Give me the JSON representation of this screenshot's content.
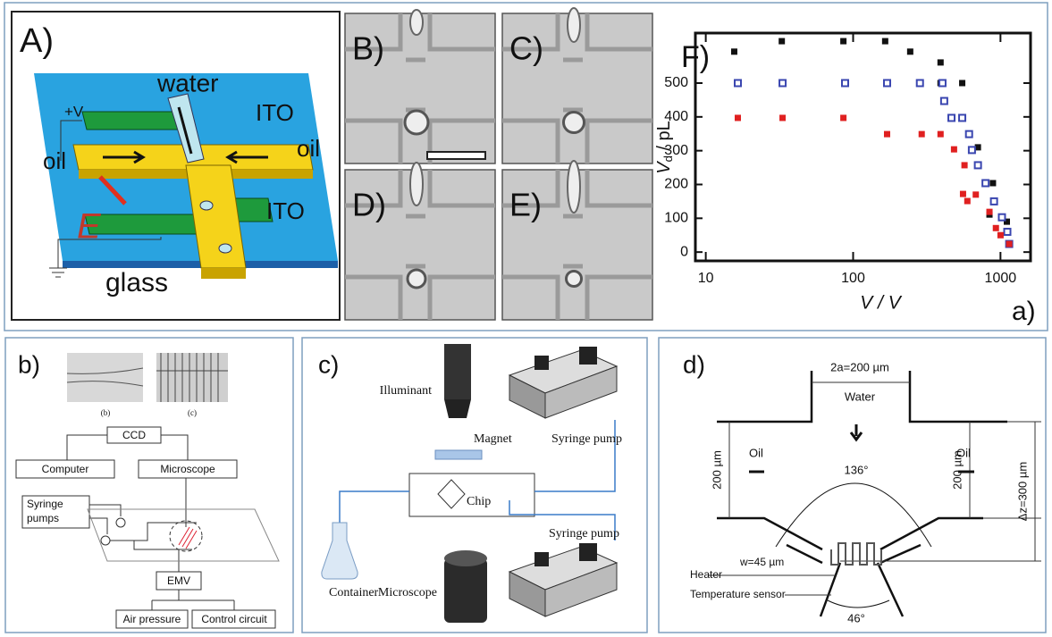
{
  "panel_labels": {
    "a": "a)",
    "b": "b)",
    "c": "c)",
    "d": "d)"
  },
  "panel_a": {
    "schematic": {
      "label": "A)",
      "water": "water",
      "ito_top": "ITO",
      "plus_v": "+V",
      "oil_left": "oil",
      "oil_right": "oil",
      "field": "E",
      "ito_bottom": "ITO",
      "glass": "glass"
    },
    "micrographs": [
      "B)",
      "C)",
      "D)",
      "E)"
    ]
  },
  "chart_data": {
    "type": "scatter",
    "title": "F)",
    "x_label": "V / V",
    "y_label": {
      "symbol": "V",
      "subscript": "d",
      "unit": " / pL"
    },
    "log_x": true,
    "xlim": [
      8.5,
      1600
    ],
    "xticks": [
      10,
      100,
      1000
    ],
    "ylim": [
      -26,
      648
    ],
    "yticks": [
      0,
      100,
      200,
      300,
      400,
      500
    ],
    "series": [
      {
        "color": "#111111",
        "x": [
          15.6,
          32.8,
          85.9,
          165,
          244,
          392,
          392,
          550,
          703,
          889,
          842,
          1105
        ],
        "values": [
          593,
          624,
          624,
          624,
          593,
          561,
          500,
          500,
          310,
          204,
          111,
          90
        ]
      },
      {
        "color": "#3a46b0",
        "x": [
          16.5,
          33.2,
          88.2,
          170,
          284,
          404,
          415,
          465,
          550,
          612,
          640,
          703,
          792,
          904,
          1023,
          1113,
          1146
        ],
        "values": [
          500,
          500,
          500,
          500,
          500,
          500,
          447,
          397,
          397,
          349,
          302,
          257,
          204,
          150,
          103,
          60,
          24
        ]
      },
      {
        "color": "#e02020",
        "x": [
          16.5,
          33.2,
          85.9,
          170,
          292,
          392,
          484,
          570,
          596,
          557,
          680,
          842,
          931,
          1001,
          1146
        ],
        "values": [
          397,
          397,
          397,
          349,
          349,
          349,
          304,
          257,
          151,
          172,
          170,
          119,
          71,
          50,
          24
        ]
      }
    ]
  },
  "panel_b": {
    "photo_captions": [
      "(b)",
      "(c)"
    ],
    "ccd": "CCD",
    "computer": "Computer",
    "microscope": "Microscope",
    "syringe_pumps": [
      "Syringe",
      "pumps"
    ],
    "emv": "EMV",
    "air_pressure": "Air pressure",
    "control_circuit": "Control circuit"
  },
  "panel_c": {
    "illuminant": "Illuminant",
    "magnet": "Magnet",
    "syringe_pump_top": "Syringe pump",
    "chip": "Chip",
    "container": "Container",
    "syringe_pump_bottom": "Syringe pump",
    "microscope": "Microscope"
  },
  "panel_d": {
    "width_top": "2a=200 µm",
    "water": "Water",
    "oil_left": "Oil",
    "oil_right": "Oil",
    "angle_top": "136°",
    "height_left": "200 µm",
    "height_right": "200 µm",
    "dz": "Δz=300 µm",
    "w": "w=45 µm",
    "heater": "Heater",
    "sensor": "Temperature sensor",
    "angle_bottom": "46°"
  }
}
